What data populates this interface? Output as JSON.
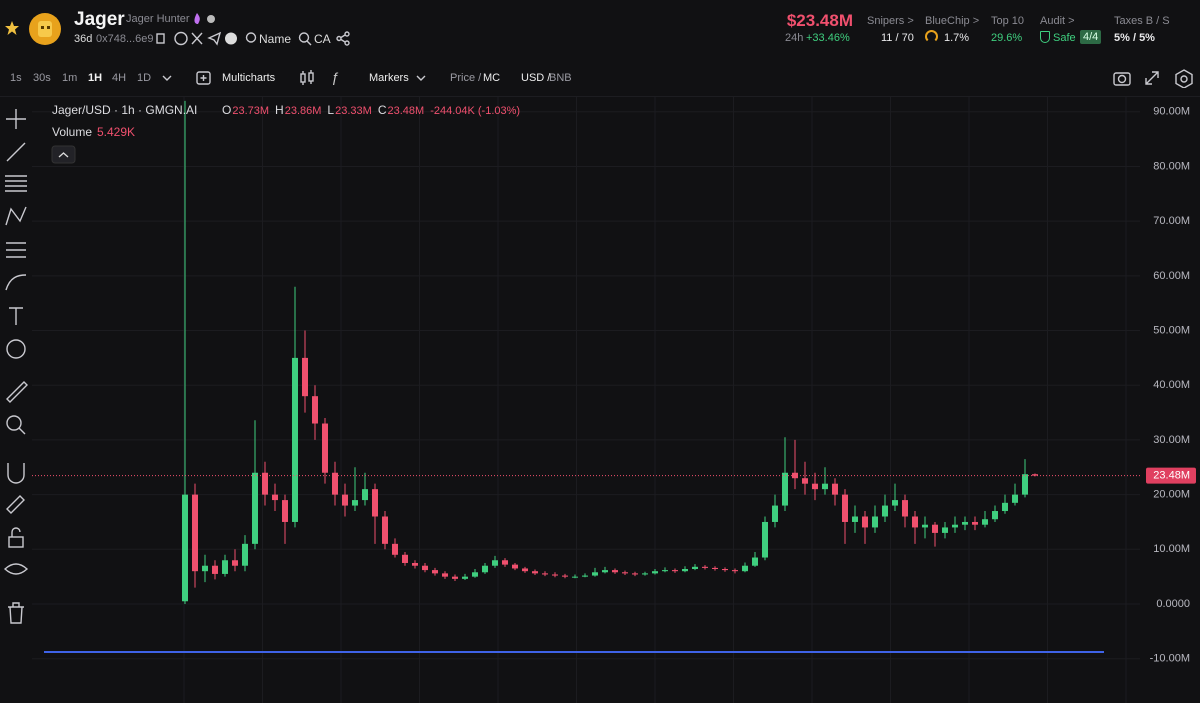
{
  "header": {
    "token": "Jager",
    "subtitle": "Jager Hunter",
    "age": "36d",
    "address": "0x748...6e9",
    "name_button": "Name",
    "ca_button": "CA",
    "price": "$23.48M",
    "change_period": "24h",
    "change": "+33.46%",
    "stats": [
      {
        "label": "Snipers >",
        "value": "11 / 70"
      },
      {
        "label": "BlueChip >",
        "value": "1.7%"
      },
      {
        "label": "Top 10",
        "value": "29.6%"
      },
      {
        "label": "Audit >",
        "value": "Safe",
        "badge": "4/4"
      },
      {
        "label": "Taxes B / S",
        "value": "5% / 5%"
      }
    ]
  },
  "toolbar": {
    "intervals": [
      "1s",
      "30s",
      "1m",
      "1H",
      "4H",
      "1D"
    ],
    "active_interval": "1H",
    "multicharts": "Multicharts",
    "markers": "Markers",
    "price": "Price /",
    "mc": "MC",
    "usd": "USD /",
    "bnb": "BNB"
  },
  "chart_data": {
    "type": "candlestick",
    "title": "Jager/USD · 1h · GMGN.AI",
    "ohlc": [
      {
        "key": "O",
        "value": "23.73M"
      },
      {
        "key": "H",
        "value": "23.86M"
      },
      {
        "key": "L",
        "value": "23.33M"
      },
      {
        "key": "C",
        "value": "23.48M"
      }
    ],
    "change": "-244.04K (-1.03%)",
    "volume_label": "Volume",
    "volume": "5.429K",
    "up_color": "#3fcf7f",
    "down_color": "#f0506e",
    "grid": true,
    "ylim": [
      -18.1,
      92.7
    ],
    "yticks": [
      {
        "value": 90,
        "label": "90.00M"
      },
      {
        "value": 80,
        "label": "80.00M"
      },
      {
        "value": 70,
        "label": "70.00M"
      },
      {
        "value": 60,
        "label": "60.00M"
      },
      {
        "value": 50,
        "label": "50.00M"
      },
      {
        "value": 40,
        "label": "40.00M"
      },
      {
        "value": 30,
        "label": "30.00M"
      },
      {
        "value": 20,
        "label": "20.00M"
      },
      {
        "value": 10,
        "label": "10.00M"
      },
      {
        "value": 0,
        "label": "0.0000"
      },
      {
        "value": -10,
        "label": "-10.00M"
      }
    ],
    "last_price": {
      "value": 23.48,
      "label": "23.48M"
    },
    "candles": [
      [
        0.5,
        92,
        0,
        20
      ],
      [
        20,
        22,
        3,
        6
      ],
      [
        6,
        9,
        4,
        7
      ],
      [
        7,
        8,
        4.5,
        5.5
      ],
      [
        5.5,
        9,
        5,
        8
      ],
      [
        8,
        10,
        6,
        7
      ],
      [
        7,
        12.6,
        6,
        11
      ],
      [
        11,
        33.6,
        10,
        24
      ],
      [
        24,
        26,
        18,
        20
      ],
      [
        20,
        22,
        17,
        19
      ],
      [
        19,
        20,
        11,
        15
      ],
      [
        15,
        58,
        14,
        45
      ],
      [
        45,
        50,
        35,
        38
      ],
      [
        38,
        40,
        30,
        33
      ],
      [
        33,
        34,
        22,
        24
      ],
      [
        24,
        26,
        18,
        20
      ],
      [
        20,
        22,
        16,
        18
      ],
      [
        18,
        25,
        17,
        19
      ],
      [
        19,
        24,
        18,
        21
      ],
      [
        21,
        22,
        11,
        16
      ],
      [
        16,
        17,
        10,
        11
      ],
      [
        11,
        12,
        8.5,
        9
      ],
      [
        9,
        9.5,
        7,
        7.5
      ],
      [
        7.5,
        8,
        6.5,
        7
      ],
      [
        7,
        7.5,
        5.8,
        6.2
      ],
      [
        6.2,
        6.6,
        5.2,
        5.6
      ],
      [
        5.6,
        6,
        4.6,
        5
      ],
      [
        5,
        5.4,
        4.2,
        4.6
      ],
      [
        4.6,
        5.5,
        4.4,
        5
      ],
      [
        5,
        6.4,
        4.8,
        5.8
      ],
      [
        5.8,
        7.5,
        5.5,
        7
      ],
      [
        7,
        8.8,
        6.6,
        8
      ],
      [
        8,
        8.4,
        6.8,
        7.2
      ],
      [
        7.2,
        7.5,
        6.2,
        6.5
      ],
      [
        6.5,
        6.8,
        5.7,
        6
      ],
      [
        6,
        6.3,
        5.3,
        5.6
      ],
      [
        5.6,
        6,
        5.1,
        5.4
      ],
      [
        5.4,
        5.8,
        4.9,
        5.2
      ],
      [
        5.2,
        5.5,
        4.7,
        5
      ],
      [
        5,
        5.4,
        4.7,
        5
      ],
      [
        5,
        5.6,
        4.9,
        5.2
      ],
      [
        5.2,
        6.6,
        5,
        5.8
      ],
      [
        5.8,
        6.8,
        5.6,
        6.2
      ],
      [
        6.2,
        6.5,
        5.5,
        5.8
      ],
      [
        5.8,
        6.1,
        5.3,
        5.6
      ],
      [
        5.6,
        5.9,
        5.1,
        5.4
      ],
      [
        5.4,
        5.9,
        5.2,
        5.6
      ],
      [
        5.6,
        6.4,
        5.4,
        6
      ],
      [
        6,
        6.7,
        5.8,
        6.2
      ],
      [
        6.2,
        6.5,
        5.7,
        6
      ],
      [
        6,
        6.9,
        5.8,
        6.4
      ],
      [
        6.4,
        7.3,
        6.2,
        6.8
      ],
      [
        6.8,
        7.1,
        6.3,
        6.6
      ],
      [
        6.6,
        6.9,
        6.1,
        6.4
      ],
      [
        6.4,
        6.7,
        5.9,
        6.2
      ],
      [
        6.2,
        6.5,
        5.6,
        6
      ],
      [
        6,
        7.6,
        5.8,
        7
      ],
      [
        7,
        9.5,
        6.8,
        8.5
      ],
      [
        8.5,
        16,
        8,
        15
      ],
      [
        15,
        20,
        14,
        18
      ],
      [
        18,
        30.5,
        17,
        24
      ],
      [
        24,
        30,
        21,
        23
      ],
      [
        23,
        26,
        20,
        22
      ],
      [
        22,
        24,
        19,
        21
      ],
      [
        21,
        25,
        20,
        22
      ],
      [
        22,
        23,
        18,
        20
      ],
      [
        20,
        21,
        11,
        15
      ],
      [
        15,
        18,
        13,
        16
      ],
      [
        16,
        17,
        11,
        14
      ],
      [
        14,
        18,
        13,
        16
      ],
      [
        16,
        20,
        15,
        18
      ],
      [
        18,
        22,
        17,
        19
      ],
      [
        19,
        20,
        14,
        16
      ],
      [
        16,
        17,
        11,
        14
      ],
      [
        14,
        16,
        12,
        14.5
      ],
      [
        14.5,
        15,
        10.5,
        13
      ],
      [
        13,
        15,
        12,
        14
      ],
      [
        14,
        16,
        13,
        14.5
      ],
      [
        14.5,
        16,
        13.5,
        15
      ],
      [
        15,
        16,
        13.5,
        14.5
      ],
      [
        14.5,
        17,
        14,
        15.5
      ],
      [
        15.5,
        18,
        15,
        17
      ],
      [
        17,
        20,
        16.5,
        18.5
      ],
      [
        18.5,
        22,
        18,
        20
      ],
      [
        20,
        26.5,
        19.5,
        23.73
      ],
      [
        23.73,
        23.86,
        23.33,
        23.48
      ]
    ]
  }
}
